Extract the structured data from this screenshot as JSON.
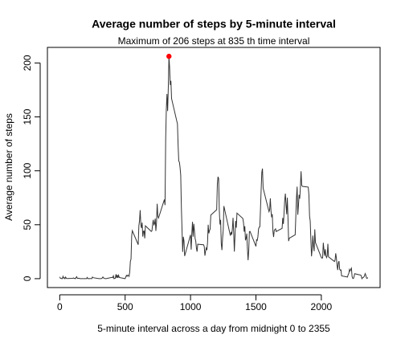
{
  "chart_data": {
    "type": "line",
    "title": "Average number of steps by 5-minute interval",
    "subtitle": "Maximum of 206 steps at 835 th time interval",
    "xlabel": "5-minute interval across a day from midnight 0 to 2355",
    "ylabel": "Average number of steps",
    "color": "#333333",
    "max_point_color": "#ff0000",
    "xlim": [
      -94.2,
      2449.2
    ],
    "ylim": [
      -8.25,
      214.45
    ],
    "xticks": [
      0,
      500,
      1000,
      1500,
      2000
    ],
    "yticks": [
      0,
      50,
      100,
      150,
      200
    ],
    "x": [
      0,
      5,
      10,
      15,
      20,
      25,
      30,
      35,
      40,
      45,
      50,
      55,
      100,
      105,
      110,
      115,
      120,
      125,
      130,
      135,
      140,
      145,
      150,
      155,
      200,
      205,
      210,
      215,
      220,
      225,
      230,
      235,
      240,
      245,
      250,
      255,
      300,
      305,
      310,
      315,
      320,
      325,
      330,
      335,
      340,
      345,
      350,
      355,
      400,
      405,
      410,
      415,
      420,
      425,
      430,
      435,
      440,
      445,
      450,
      455,
      500,
      505,
      510,
      515,
      520,
      525,
      530,
      535,
      540,
      545,
      550,
      555,
      600,
      605,
      610,
      615,
      620,
      625,
      630,
      635,
      640,
      645,
      650,
      655,
      700,
      705,
      710,
      715,
      720,
      725,
      730,
      735,
      740,
      745,
      750,
      755,
      800,
      805,
      810,
      815,
      820,
      825,
      830,
      835,
      840,
      845,
      850,
      855,
      900,
      905,
      910,
      915,
      920,
      925,
      930,
      935,
      940,
      945,
      950,
      955,
      1000,
      1005,
      1010,
      1015,
      1020,
      1025,
      1030,
      1035,
      1040,
      1045,
      1050,
      1055,
      1100,
      1105,
      1110,
      1115,
      1120,
      1125,
      1130,
      1135,
      1140,
      1145,
      1150,
      1155,
      1200,
      1205,
      1210,
      1215,
      1220,
      1225,
      1230,
      1235,
      1240,
      1245,
      1250,
      1255,
      1300,
      1305,
      1310,
      1315,
      1320,
      1325,
      1330,
      1335,
      1340,
      1345,
      1350,
      1355,
      1400,
      1405,
      1410,
      1415,
      1420,
      1425,
      1430,
      1435,
      1440,
      1445,
      1450,
      1455,
      1500,
      1505,
      1510,
      1515,
      1520,
      1525,
      1530,
      1535,
      1540,
      1545,
      1550,
      1555,
      1600,
      1605,
      1610,
      1615,
      1620,
      1625,
      1630,
      1635,
      1640,
      1645,
      1650,
      1655,
      1700,
      1705,
      1710,
      1715,
      1720,
      1725,
      1730,
      1735,
      1740,
      1745,
      1750,
      1755,
      1800,
      1805,
      1810,
      1815,
      1820,
      1825,
      1830,
      1835,
      1840,
      1845,
      1850,
      1855,
      1900,
      1905,
      1910,
      1915,
      1920,
      1925,
      1930,
      1935,
      1940,
      1945,
      1950,
      1955,
      2000,
      2005,
      2010,
      2015,
      2020,
      2025,
      2030,
      2035,
      2040,
      2045,
      2050,
      2055,
      2100,
      2105,
      2110,
      2115,
      2120,
      2125,
      2130,
      2135,
      2140,
      2145,
      2150,
      2155,
      2200,
      2205,
      2210,
      2215,
      2220,
      2225,
      2230,
      2235,
      2240,
      2245,
      2250,
      2255,
      2300,
      2305,
      2310,
      2315,
      2320,
      2325,
      2330,
      2335,
      2340,
      2345,
      2350,
      2355
    ],
    "values": [
      1.7,
      0.3,
      0.1,
      0.2,
      0,
      2.1,
      0.5,
      0.9,
      0,
      1.5,
      0.3,
      0.1,
      0.3,
      0.7,
      0.2,
      0.3,
      0,
      1.1,
      1.8,
      0.2,
      0.2,
      0.4,
      0.3,
      0,
      0,
      0,
      1.1,
      0,
      0,
      0.1,
      0,
      0.2,
      0,
      0,
      1.5,
      0.9,
      0,
      0,
      0,
      0,
      0.2,
      0.6,
      1.6,
      0.6,
      0.5,
      0.1,
      0,
      0,
      1.2,
      0.9,
      2.6,
      0,
      0.3,
      0.4,
      4.1,
      0.7,
      3.5,
      0.8,
      3.1,
      1.1,
      0,
      1.6,
      3,
      2.2,
      3.3,
      3,
      2.1,
      6,
      16,
      18.3,
      39.5,
      44.5,
      31.5,
      49,
      53.8,
      63.5,
      50,
      47,
      52,
      39,
      44,
      44.2,
      37.4,
      49,
      43.8,
      44.4,
      50.5,
      54.5,
      49.9,
      51,
      55.7,
      44.3,
      52.3,
      69.5,
      57.8,
      56.2,
      73.4,
      68.2,
      129.4,
      157.5,
      171.2,
      155.4,
      177.3,
      206.2,
      195.9,
      179.6,
      183.4,
      167,
      143.5,
      124,
      109,
      108,
      103,
      95.9,
      66.2,
      45.2,
      24.8,
      38.8,
      35,
      21,
      40.6,
      27,
      42.4,
      52.7,
      38.9,
      50.8,
      44.3,
      37.4,
      34.7,
      28.3,
      25.1,
      31.9,
      31.4,
      29.7,
      21.3,
      25.5,
      28.4,
      26.5,
      33.4,
      50,
      42,
      44.6,
      46,
      59,
      63.9,
      87.6,
      94.5,
      92.8,
      63.4,
      50.2,
      54.5,
      32.4,
      26.5,
      37.7,
      45,
      67.3,
      42.3,
      39.9,
      43.3,
      40.9,
      46.2,
      56.4,
      42.8,
      25.1,
      39.9,
      53.5,
      47.3,
      60.8,
      55.8,
      51.9,
      43.6,
      48.7,
      35.5,
      37.5,
      41.8,
      27.5,
      17.1,
      26.1,
      43.6,
      43.8,
      30,
      36.1,
      35.5,
      38.8,
      46,
      47.8,
      48.1,
      65.3,
      82.9,
      98.7,
      102.1,
      84,
      62.1,
      64.1,
      74.5,
      63.2,
      56.9,
      59.8,
      43.9,
      38.6,
      44.7,
      45.5,
      46.2,
      43.7,
      46.6,
      56.3,
      50.7,
      61.2,
      72.7,
      78.9,
      68.9,
      59.7,
      75.1,
      56.5,
      34.8,
      37.5,
      40.7,
      58,
      74.7,
      85.3,
      59.3,
      67.8,
      77.7,
      74.2,
      85.3,
      99.5,
      86.6,
      85.6,
      84.9,
      77.8,
      58,
      53.4,
      36.3,
      20.7,
      27.4,
      40,
      30.2,
      25.5,
      45.7,
      33.5,
      19.6,
      19,
      19.3,
      33.3,
      26.8,
      21.2,
      27.3,
      21.3,
      19.5,
      21.3,
      32.3,
      20.2,
      15.9,
      17.2,
      23.5,
      19.2,
      12.5,
      8,
      14.7,
      16.3,
      8.7,
      7.8,
      8.1,
      2.6,
      1.5,
      3.7,
      4.8,
      8.5,
      7.1,
      8.7,
      9.8,
      2.2,
      0.3,
      0.1,
      1.6,
      4.6,
      3.3,
      2.8,
      0,
      0.8,
      1,
      1.6,
      2.6,
      4.7,
      3.3,
      0.6,
      0.2,
      1.1
    ]
  }
}
